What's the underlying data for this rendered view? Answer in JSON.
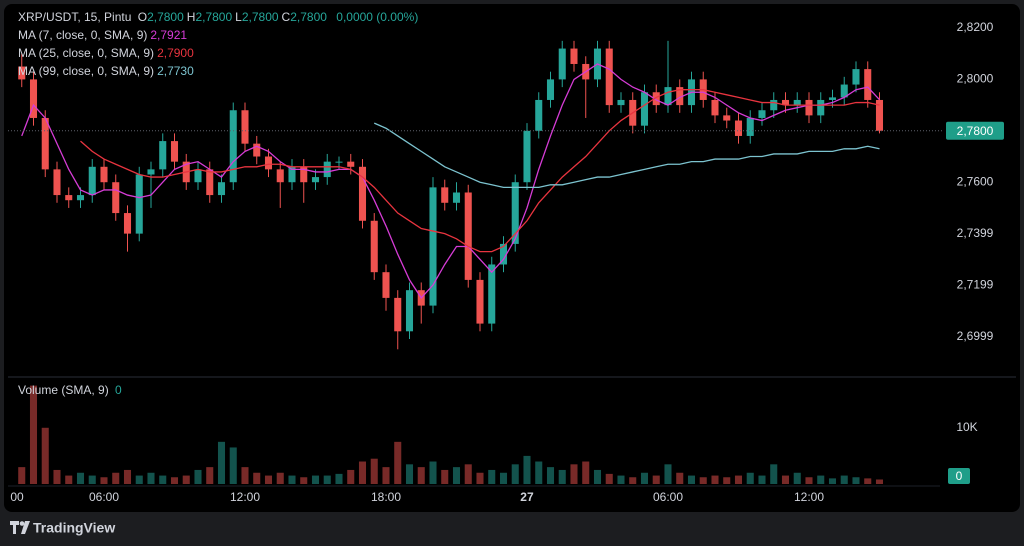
{
  "chart_data": {
    "type": "candlestick",
    "title": "XRP/USDT, 15, Pintu",
    "ohlc_header": [
      {
        "label": "O",
        "value": "2,7800"
      },
      {
        "label": "H",
        "value": "2,7800"
      },
      {
        "label": "L",
        "value": "2,7800"
      },
      {
        "label": "C",
        "value": "2,7800"
      }
    ],
    "change": "0,0000 (0.00%)",
    "up_color": "#26a69a",
    "down_color": "#ef5350",
    "grid": false,
    "x": [
      2.5,
      3,
      3.5,
      4,
      4.5,
      5,
      5.5,
      6,
      6.5,
      7,
      7.5,
      8,
      8.5,
      9,
      9.5,
      10,
      10.5,
      11,
      11.5,
      12,
      12.5,
      13,
      13.5,
      14,
      14.5,
      15,
      15.5,
      16,
      16.5,
      17,
      17.5,
      18,
      18.5,
      19,
      19.5,
      20,
      20.5,
      21,
      21.5,
      22,
      22.5,
      23,
      23.5,
      24,
      24.5,
      25,
      25.5,
      26,
      26.5,
      27,
      27.5,
      28,
      28.5,
      29,
      29.5,
      30,
      30.5,
      31,
      31.5,
      32,
      32.5,
      33,
      33.5,
      34,
      34.5,
      35,
      35.5,
      36,
      36.5,
      37,
      37.5,
      38,
      38.5,
      39
    ],
    "xlim": [
      1.915,
      41.575
    ],
    "xticks": [
      {
        "value": 2.3,
        "label": "00"
      },
      {
        "value": 6,
        "label": "06:00"
      },
      {
        "value": 12,
        "label": "12:00"
      },
      {
        "value": 18,
        "label": "18:00"
      },
      {
        "value": 24,
        "label": "27"
      },
      {
        "value": 30,
        "label": "06:00"
      },
      {
        "value": 36,
        "label": "12:00"
      }
    ],
    "ylim": [
      2.685,
      2.827
    ],
    "yticks": [
      {
        "value": 2.82,
        "label": "2,8200"
      },
      {
        "value": 2.8,
        "label": "2,8000"
      },
      {
        "value": 2.76,
        "label": "2,7600"
      },
      {
        "value": 2.7399,
        "label": "2,7399"
      },
      {
        "value": 2.7199,
        "label": "2,7199"
      },
      {
        "value": 2.6999,
        "label": "2,6999"
      }
    ],
    "open": [
      2.805,
      2.8,
      2.785,
      2.765,
      2.755,
      2.753,
      2.755,
      2.766,
      2.76,
      2.748,
      2.74,
      2.763,
      2.765,
      2.776,
      2.768,
      2.76,
      2.765,
      2.755,
      2.76,
      2.788,
      2.775,
      2.77,
      2.765,
      2.76,
      2.766,
      2.76,
      2.762,
      2.768,
      2.768,
      2.766,
      2.745,
      2.725,
      2.715,
      2.702,
      2.718,
      2.712,
      2.758,
      2.752,
      2.756,
      2.722,
      2.705,
      2.728,
      2.736,
      2.76,
      2.78,
      2.792,
      2.8,
      2.812,
      2.806,
      2.8,
      2.812,
      2.79,
      2.792,
      2.782,
      2.795,
      2.79,
      2.797,
      2.79,
      2.8,
      2.792,
      2.786,
      2.784,
      2.778,
      2.785,
      2.788,
      2.792,
      2.79,
      2.792,
      2.786,
      2.792,
      2.793,
      2.798,
      2.804,
      2.792
    ],
    "high": [
      2.81,
      2.803,
      2.788,
      2.768,
      2.758,
      2.758,
      2.769,
      2.769,
      2.763,
      2.751,
      2.766,
      2.768,
      2.779,
      2.779,
      2.771,
      2.768,
      2.768,
      2.763,
      2.791,
      2.791,
      2.778,
      2.773,
      2.768,
      2.769,
      2.769,
      2.765,
      2.771,
      2.77,
      2.771,
      2.769,
      2.748,
      2.728,
      2.718,
      2.721,
      2.721,
      2.762,
      2.761,
      2.76,
      2.759,
      2.725,
      2.731,
      2.739,
      2.763,
      2.783,
      2.795,
      2.803,
      2.815,
      2.815,
      2.809,
      2.815,
      2.815,
      2.795,
      2.795,
      2.798,
      2.798,
      2.815,
      2.8,
      2.803,
      2.803,
      2.795,
      2.789,
      2.787,
      2.788,
      2.791,
      2.795,
      2.795,
      2.795,
      2.795,
      2.795,
      2.796,
      2.801,
      2.807,
      2.807,
      2.795
    ],
    "low": [
      2.797,
      2.782,
      2.762,
      2.752,
      2.75,
      2.75,
      2.752,
      2.757,
      2.745,
      2.733,
      2.737,
      2.75,
      2.762,
      2.765,
      2.757,
      2.757,
      2.752,
      2.752,
      2.757,
      2.772,
      2.767,
      2.762,
      2.75,
      2.757,
      2.752,
      2.757,
      2.759,
      2.765,
      2.763,
      2.742,
      2.722,
      2.71,
      2.695,
      2.699,
      2.705,
      2.709,
      2.749,
      2.749,
      2.719,
      2.702,
      2.702,
      2.725,
      2.733,
      2.757,
      2.777,
      2.789,
      2.797,
      2.803,
      2.785,
      2.797,
      2.787,
      2.787,
      2.779,
      2.779,
      2.787,
      2.787,
      2.787,
      2.787,
      2.789,
      2.783,
      2.781,
      2.775,
      2.775,
      2.782,
      2.785,
      2.787,
      2.787,
      2.783,
      2.783,
      2.789,
      2.79,
      2.795,
      2.789,
      2.779
    ],
    "close": [
      2.8,
      2.785,
      2.765,
      2.755,
      2.753,
      2.755,
      2.766,
      2.76,
      2.748,
      2.74,
      2.763,
      2.765,
      2.776,
      2.768,
      2.76,
      2.765,
      2.755,
      2.76,
      2.788,
      2.775,
      2.77,
      2.765,
      2.76,
      2.766,
      2.76,
      2.762,
      2.768,
      2.768,
      2.766,
      2.745,
      2.725,
      2.715,
      2.702,
      2.718,
      2.712,
      2.758,
      2.752,
      2.756,
      2.722,
      2.705,
      2.728,
      2.736,
      2.76,
      2.78,
      2.792,
      2.8,
      2.812,
      2.806,
      2.8,
      2.812,
      2.79,
      2.792,
      2.782,
      2.795,
      2.79,
      2.797,
      2.79,
      2.8,
      2.792,
      2.786,
      2.784,
      2.778,
      2.785,
      2.788,
      2.792,
      2.79,
      2.792,
      2.786,
      2.792,
      2.793,
      2.798,
      2.804,
      2.792,
      2.78
    ],
    "series": [
      {
        "name": "MA (7, close, 0, SMA, 9)",
        "color": "#d63cd6",
        "last_label": "2,7921",
        "values": [
          2.778,
          2.79,
          2.785,
          2.775,
          2.765,
          2.757,
          2.755,
          2.757,
          2.757,
          2.755,
          2.754,
          2.755,
          2.76,
          2.765,
          2.767,
          2.768,
          2.765,
          2.762,
          2.768,
          2.772,
          2.774,
          2.772,
          2.768,
          2.765,
          2.765,
          2.764,
          2.764,
          2.765,
          2.765,
          2.762,
          2.753,
          2.743,
          2.732,
          2.722,
          2.715,
          2.72,
          2.728,
          2.735,
          2.735,
          2.73,
          2.725,
          2.73,
          2.738,
          2.75,
          2.765,
          2.778,
          2.79,
          2.8,
          2.803,
          2.806,
          2.804,
          2.8,
          2.797,
          2.795,
          2.792,
          2.79,
          2.793,
          2.795,
          2.795,
          2.793,
          2.79,
          2.787,
          2.785,
          2.784,
          2.786,
          2.788,
          2.789,
          2.79,
          2.79,
          2.791,
          2.793,
          2.796,
          2.797,
          2.7921
        ]
      },
      {
        "name": "MA (25, close, 0, SMA, 9)",
        "color": "#e8343f",
        "last_label": "2,7900",
        "values": [
          null,
          null,
          null,
          null,
          null,
          2.776,
          2.772,
          2.769,
          2.767,
          2.765,
          2.763,
          2.762,
          2.762,
          2.763,
          2.764,
          2.765,
          2.764,
          2.764,
          2.765,
          2.766,
          2.766,
          2.767,
          2.767,
          2.766,
          2.766,
          2.766,
          2.766,
          2.766,
          2.765,
          2.762,
          2.758,
          2.753,
          2.748,
          2.745,
          2.742,
          2.741,
          2.74,
          2.738,
          2.735,
          2.733,
          2.733,
          2.735,
          2.74,
          2.745,
          2.752,
          2.757,
          2.762,
          2.766,
          2.77,
          2.775,
          2.78,
          2.784,
          2.787,
          2.79,
          2.793,
          2.795,
          2.796,
          2.796,
          2.796,
          2.795,
          2.794,
          2.793,
          2.792,
          2.791,
          2.791,
          2.79,
          2.79,
          2.79,
          2.79,
          2.79,
          2.79,
          2.791,
          2.791,
          2.79
        ]
      },
      {
        "name": "MA (99, close, 0, SMA, 9)",
        "color": "#7cc3cf",
        "last_label": "2,7730",
        "values": [
          null,
          null,
          null,
          null,
          null,
          null,
          null,
          null,
          null,
          null,
          null,
          null,
          null,
          null,
          null,
          null,
          null,
          null,
          null,
          null,
          null,
          null,
          null,
          null,
          null,
          null,
          null,
          null,
          null,
          null,
          2.783,
          2.781,
          2.778,
          2.775,
          2.772,
          2.769,
          2.766,
          2.764,
          2.762,
          2.76,
          2.759,
          2.758,
          2.758,
          2.758,
          2.758,
          2.759,
          2.759,
          2.76,
          2.761,
          2.762,
          2.762,
          2.763,
          2.764,
          2.765,
          2.766,
          2.767,
          2.767,
          2.768,
          2.768,
          2.769,
          2.769,
          2.769,
          2.77,
          2.77,
          2.771,
          2.771,
          2.771,
          2.772,
          2.772,
          2.772,
          2.773,
          2.773,
          2.774,
          2.773
        ]
      }
    ],
    "current": {
      "value": 2.78,
      "label": "2,7800",
      "color": "#1f9e89"
    },
    "volume": {
      "title": "Volume (SMA, 9)",
      "current": 0,
      "y2lim": [
        0,
        18500
      ],
      "y2ticks": [
        {
          "value": 10000,
          "label": "10K"
        }
      ],
      "values": [
        3000,
        17500,
        10000,
        2500,
        1500,
        2000,
        1500,
        1200,
        2000,
        2500,
        1500,
        2000,
        1500,
        1200,
        1500,
        2500,
        3000,
        7500,
        6500,
        3000,
        2000,
        1500,
        2000,
        1500,
        1200,
        1500,
        1500,
        1800,
        2500,
        4000,
        4500,
        3000,
        7500,
        3500,
        3000,
        4000,
        2500,
        3000,
        3500,
        2000,
        2500,
        2000,
        3500,
        5000,
        4000,
        3000,
        2500,
        3500,
        4000,
        2500,
        1800,
        1500,
        1200,
        2000,
        1500,
        3500,
        2000,
        1500,
        1200,
        1500,
        1200,
        1500,
        2000,
        1500,
        3500,
        1500,
        2000,
        1200,
        1500,
        1000,
        1500,
        1200,
        1000,
        800
      ]
    }
  },
  "footer": {
    "brand": "TradingView"
  }
}
